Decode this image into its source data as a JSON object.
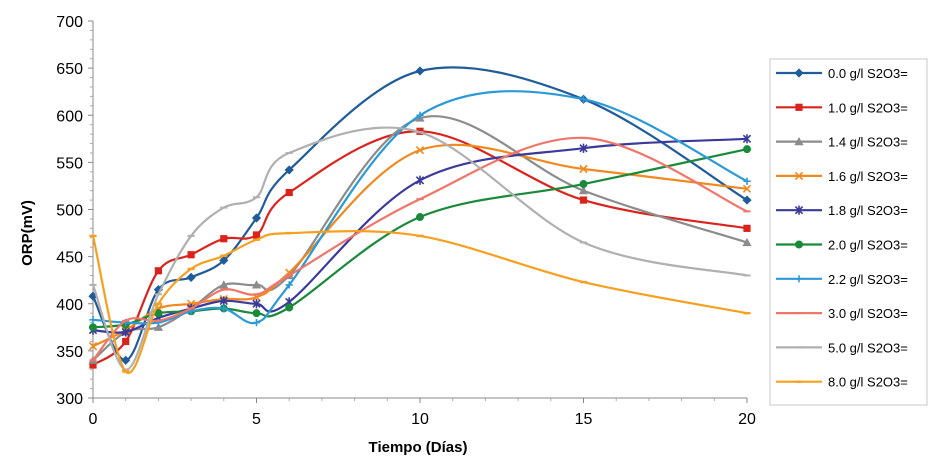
{
  "chart_data": {
    "type": "line",
    "title": "",
    "xlabel": "Tiempo (Días)",
    "ylabel": "ORP(mV)",
    "xlim": [
      0,
      20
    ],
    "ylim": [
      300,
      700
    ],
    "xticks": [
      "0",
      "5",
      "10",
      "15",
      "20"
    ],
    "yticks": [
      "300",
      "350",
      "400",
      "450",
      "500",
      "550",
      "600",
      "650",
      "700"
    ],
    "x": [
      0,
      1,
      2,
      3,
      4,
      5,
      6,
      10,
      15,
      20
    ],
    "legend_position": "right",
    "smooth": true,
    "grid": false,
    "series": [
      {
        "name": "0.0 g/l S2O3=",
        "color": "#1f5c99",
        "marker": "diamond",
        "values": [
          408,
          340,
          415,
          428,
          446,
          491,
          542,
          647,
          617,
          510
        ]
      },
      {
        "name": "1.0 g/l S2O3=",
        "color": "#d9231c",
        "marker": "square",
        "values": [
          335,
          360,
          435,
          452,
          469,
          473,
          518,
          583,
          510,
          480
        ]
      },
      {
        "name": "1.4 g/l S2O3=",
        "color": "#8c8c8c",
        "marker": "triangle",
        "values": [
          340,
          370,
          375,
          395,
          420,
          420,
          430,
          597,
          520,
          465
        ]
      },
      {
        "name": "1.6 g/l S2O3=",
        "color": "#f0891e",
        "marker": "x",
        "values": [
          355,
          372,
          395,
          400,
          405,
          407,
          433,
          563,
          543,
          522
        ]
      },
      {
        "name": "1.8 g/l S2O3=",
        "color": "#3a3a9c",
        "marker": "star",
        "values": [
          372,
          370,
          385,
          395,
          403,
          400,
          402,
          531,
          565,
          575
        ]
      },
      {
        "name": "2.0 g/l S2O3=",
        "color": "#1a8a3a",
        "marker": "circle",
        "values": [
          375,
          378,
          390,
          392,
          395,
          390,
          396,
          492,
          527,
          564
        ]
      },
      {
        "name": "2.2 g/l S2O3=",
        "color": "#2b9ad6",
        "marker": "plus",
        "values": [
          383,
          380,
          380,
          392,
          395,
          380,
          420,
          600,
          617,
          530
        ]
      },
      {
        "name": "3.0 g/l S2O3=",
        "color": "#f0766a",
        "marker": "dash",
        "values": [
          340,
          382,
          382,
          395,
          415,
          410,
          430,
          511,
          576,
          498
        ]
      },
      {
        "name": "5.0 g/l S2O3=",
        "color": "#b0b0b0",
        "marker": "dash",
        "values": [
          420,
          330,
          410,
          472,
          502,
          513,
          560,
          582,
          465,
          430
        ]
      },
      {
        "name": "8.0 g/l S2O3=",
        "color": "#f6a020",
        "marker": "bar",
        "values": [
          472,
          328,
          400,
          437,
          451,
          468,
          475,
          472,
          423,
          390
        ]
      }
    ]
  }
}
